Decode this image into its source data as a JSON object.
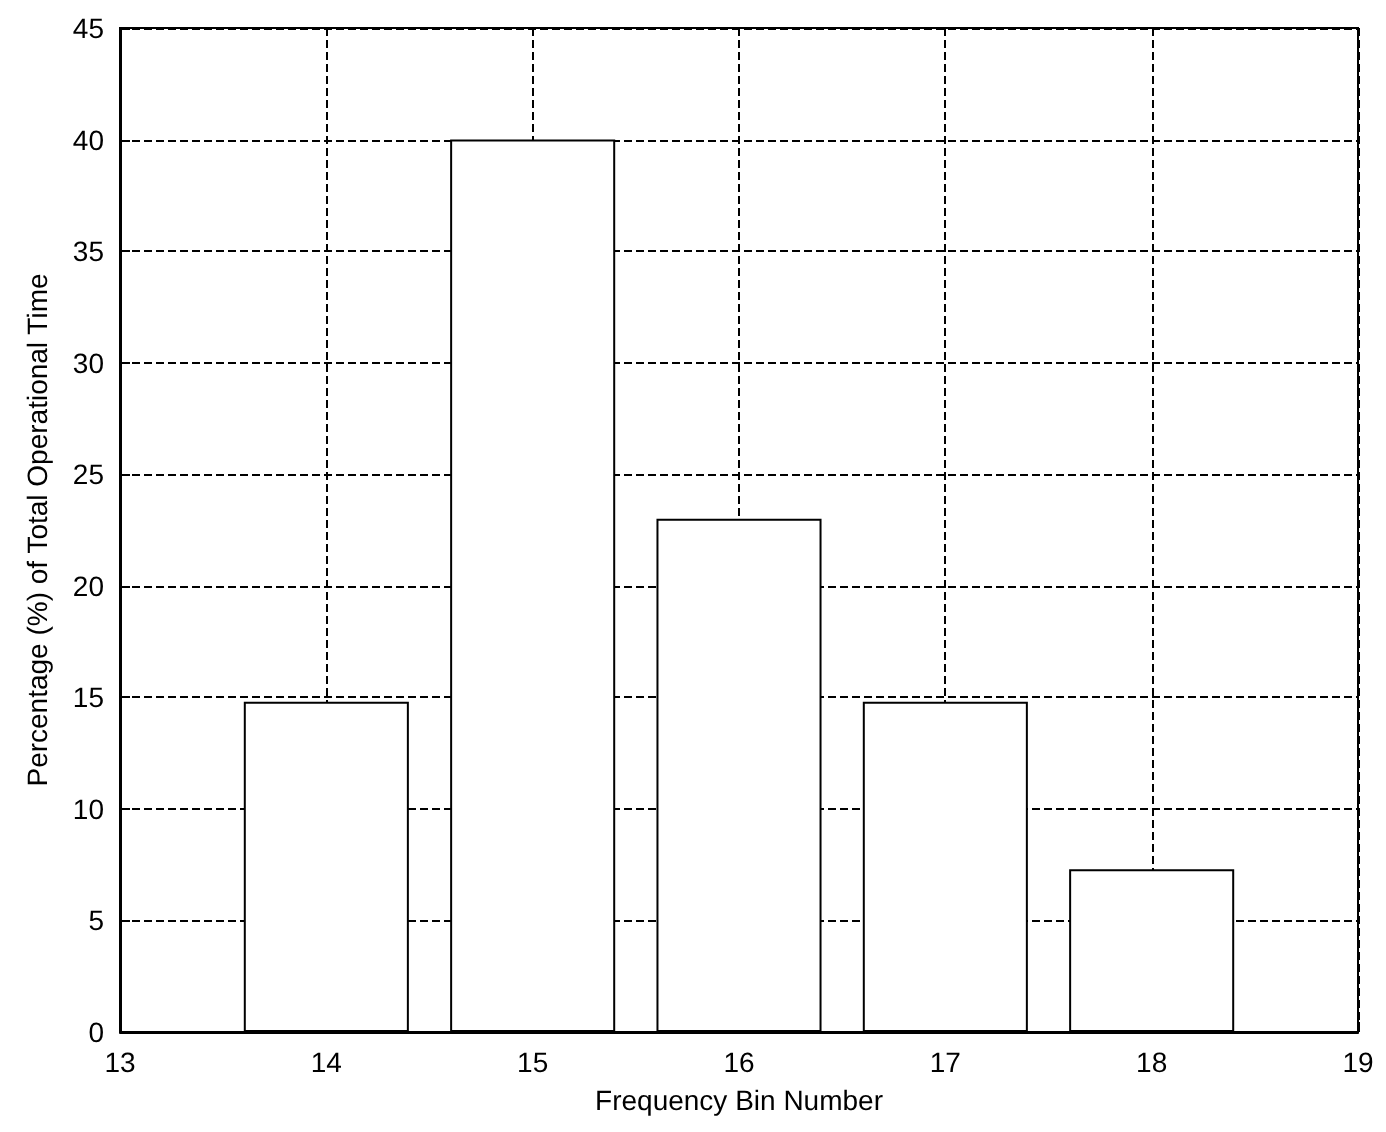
{
  "chart_data": {
    "type": "bar",
    "xlabel": "Frequency Bin Number",
    "ylabel": "Percentage (%) of Total Operational Time",
    "x": [
      14,
      15,
      16,
      17,
      18
    ],
    "values": [
      14.8,
      40,
      23,
      14.8,
      7.3
    ],
    "color": "#ffffff",
    "xlim": [
      13,
      19
    ],
    "xticks": [
      13,
      14,
      15,
      16,
      17,
      18,
      19
    ],
    "ylim": [
      0,
      45
    ],
    "yticks": [
      0,
      5,
      10,
      15,
      20,
      25,
      30,
      35,
      40,
      45
    ],
    "grid": true
  }
}
